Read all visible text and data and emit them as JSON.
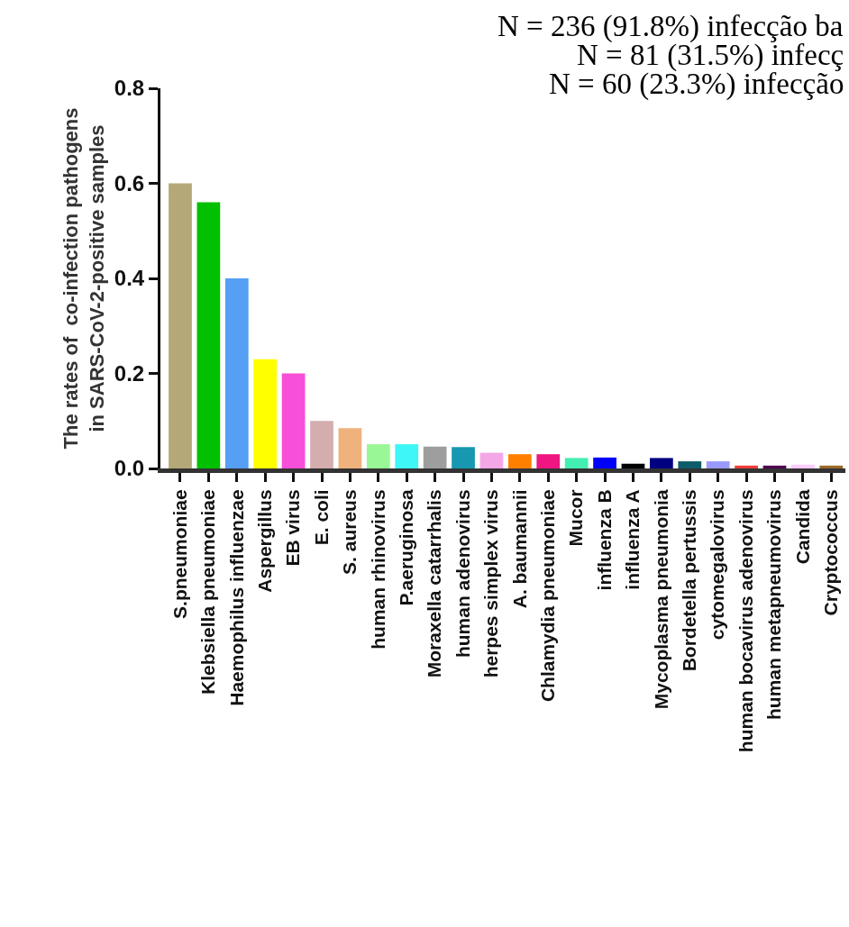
{
  "chart_data": {
    "type": "bar",
    "ylabel": "The rates of  co-infection pathogens\nin SARS-CoV-2-positive samples",
    "annotations": [
      "N = 236 (91.8%) infecção ba",
      "N = 81 (31.5%) infecç",
      "N = 60 (23.3%) infecção"
    ],
    "categories": [
      "S.pneumoniae",
      "Klebsiella pneumoniae",
      "Haemophilus influenzae",
      "Aspergillus",
      "EB virus",
      "E. coli",
      "S. aureus",
      "human rhinovirus",
      "P.aeruginosa",
      "Moraxella catarrhalis",
      "human adenovirus",
      "herpes simplex virus",
      "A. baumannii",
      "Chlamydia pneumoniae",
      "Mucor",
      "influenza B",
      "influenza A",
      "Mycoplasma pneumonia",
      "Bordetella pertussis",
      "cytomegalovirus",
      "human bocavirus adenovirus",
      "human metapneumovirus",
      "Candida",
      "Cryptococcus"
    ],
    "values": [
      0.6,
      0.56,
      0.4,
      0.23,
      0.2,
      0.1,
      0.085,
      0.051,
      0.051,
      0.046,
      0.045,
      0.033,
      0.03,
      0.03,
      0.022,
      0.023,
      0.01,
      0.022,
      0.015,
      0.015,
      0.006,
      0.006,
      0.008,
      0.006
    ],
    "colors": [
      "#b5a878",
      "#00c000",
      "#559ff5",
      "#ffff00",
      "#f74fd8",
      "#d4aeae",
      "#efb27c",
      "#99f795",
      "#3ef6f6",
      "#9e9e9e",
      "#1897b0",
      "#f3a7e6",
      "#ff8000",
      "#ef1681",
      "#42eeb0",
      "#0000ff",
      "#000000",
      "#000080",
      "#0d5c6a",
      "#9999ff",
      "#ef3b3b",
      "#500050",
      "#ffccff",
      "#9a6a2a"
    ],
    "ylim": [
      0,
      0.8
    ],
    "grid": false,
    "yticks": [
      {
        "value": 0,
        "label": "0.0"
      },
      {
        "value": 0.2,
        "label": "0.2"
      },
      {
        "value": 0.4,
        "label": "0.4"
      },
      {
        "value": 0.6,
        "label": "0.6"
      },
      {
        "value": 0.8,
        "label": "0.8"
      }
    ],
    "legend": false
  }
}
